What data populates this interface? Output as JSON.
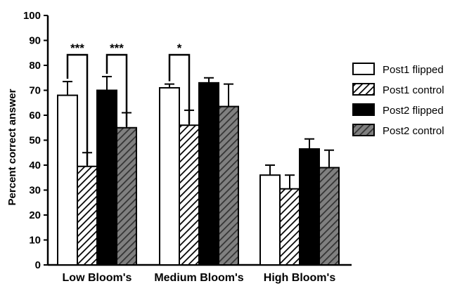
{
  "chart_data": {
    "type": "bar",
    "title": "",
    "xlabel": "",
    "ylabel": "Percent correct answer",
    "ylim": [
      0,
      100
    ],
    "yticks": [
      0,
      10,
      20,
      30,
      40,
      50,
      60,
      70,
      80,
      90,
      100
    ],
    "categories": [
      "Low Bloom's",
      "Medium Bloom's",
      "High Bloom's"
    ],
    "legend_position": "right",
    "series": [
      {
        "name": "Post1 flipped",
        "values": [
          68,
          71,
          36
        ],
        "errors": [
          5.5,
          1.5,
          4
        ],
        "style": "open",
        "color": "#ffffff"
      },
      {
        "name": "Post1 control",
        "values": [
          39.5,
          56,
          30.5
        ],
        "errors": [
          5.5,
          6,
          5.5
        ],
        "style": "hatched",
        "color": "#ffffff"
      },
      {
        "name": "Post2 flipped",
        "values": [
          70,
          73,
          46.5
        ],
        "errors": [
          5.5,
          2,
          4
        ],
        "style": "solid",
        "color": "#000000"
      },
      {
        "name": "Post2 control",
        "values": [
          55,
          63.5,
          39
        ],
        "errors": [
          6,
          9,
          7
        ],
        "style": "hatched-gray",
        "color": "#808080"
      }
    ],
    "significance": [
      {
        "category": 0,
        "series": [
          0,
          1
        ],
        "label": "***"
      },
      {
        "category": 0,
        "series": [
          2,
          3
        ],
        "label": "***"
      },
      {
        "category": 1,
        "series": [
          0,
          1
        ],
        "label": "*"
      }
    ]
  }
}
